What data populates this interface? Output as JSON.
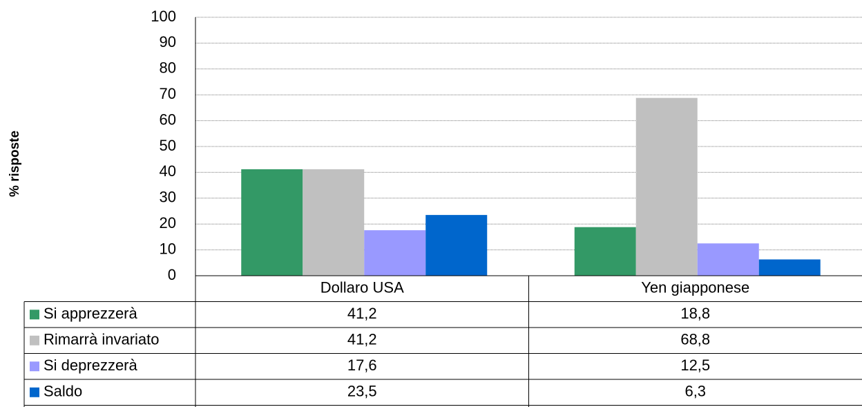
{
  "chart_data": {
    "type": "bar",
    "y_label": "% risposte",
    "categories": [
      "Dollaro USA",
      "Yen giapponese"
    ],
    "series": [
      {
        "name": "Si apprezzerà",
        "color": "#339966",
        "values": [
          41.2,
          18.8
        ],
        "value_labels": [
          "41,2",
          "18,8"
        ]
      },
      {
        "name": "Rimarrà invariato",
        "color": "#c0c0c0",
        "values": [
          41.2,
          68.8
        ],
        "value_labels": [
          "41,2",
          "68,8"
        ]
      },
      {
        "name": "Si deprezzerà",
        "color": "#9999ff",
        "values": [
          17.6,
          12.5
        ],
        "value_labels": [
          "17,6",
          "12,5"
        ]
      },
      {
        "name": "Saldo",
        "color": "#0066cc",
        "values": [
          23.5,
          6.3
        ],
        "value_labels": [
          "23,5",
          "6,3"
        ]
      }
    ],
    "ylim": [
      0,
      100
    ],
    "yticks": [
      0,
      10,
      20,
      30,
      40,
      50,
      60,
      70,
      80,
      90,
      100
    ],
    "grid": true
  }
}
